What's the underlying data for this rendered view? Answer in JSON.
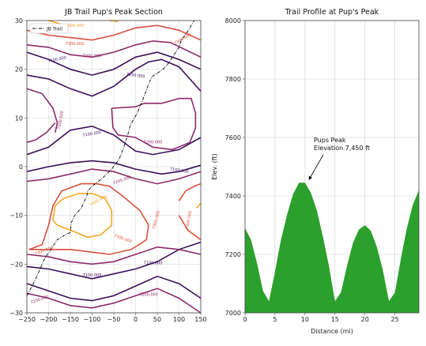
{
  "chart_data": [
    {
      "type": "contour",
      "title": "JB Trail Pup's Peak Section",
      "xlabel": "",
      "ylabel": "",
      "xlim": [
        -250,
        150
      ],
      "ylim": [
        -30,
        30
      ],
      "xticks": [
        -250,
        -200,
        -150,
        -100,
        -50,
        0,
        50,
        100,
        150
      ],
      "yticks": [
        -30,
        -20,
        -10,
        0,
        10,
        20,
        30
      ],
      "grid": true,
      "legend": {
        "position": "top-left",
        "entries": [
          "JB Trail"
        ]
      },
      "levels": [
        {
          "value": 7100,
          "color": "#3b0f5c",
          "label": "7100.000"
        },
        {
          "value": 7200,
          "color": "#8c2a6a",
          "label": "7200.000"
        },
        {
          "value": 7300,
          "color": "#d8503b",
          "label": "7300.000"
        },
        {
          "value": 7400,
          "color": "#f5a623",
          "label": "7400.000"
        }
      ],
      "trail": {
        "name": "JB Trail",
        "color": "#000000",
        "points": [
          [
            -250,
            -26.5
          ],
          [
            -235,
            -24
          ],
          [
            -222,
            -21.5
          ],
          [
            -210,
            -19
          ],
          [
            -195,
            -17
          ],
          [
            -180,
            -15
          ],
          [
            -162,
            -14
          ],
          [
            -150,
            -13.5
          ],
          [
            -148,
            -11.5
          ],
          [
            -140,
            -10
          ],
          [
            -125,
            -8.5
          ],
          [
            -112,
            -6
          ],
          [
            -110,
            -5
          ],
          [
            -100,
            -4
          ],
          [
            -85,
            -3
          ],
          [
            -72,
            -2
          ],
          [
            -55,
            -0.5
          ],
          [
            -38,
            1.5
          ],
          [
            -27,
            4
          ],
          [
            -18,
            6.5
          ],
          [
            -12,
            8.5
          ],
          [
            -6,
            9.5
          ],
          [
            4,
            11
          ],
          [
            13,
            13
          ],
          [
            22,
            15
          ],
          [
            30,
            17
          ],
          [
            38,
            18.5
          ],
          [
            55,
            19.5
          ],
          [
            70,
            20.5
          ],
          [
            85,
            22.5
          ],
          [
            100,
            24.5
          ],
          [
            105,
            26
          ],
          [
            118,
            27.5
          ],
          [
            128,
            29
          ],
          [
            135,
            30
          ]
        ]
      }
    },
    {
      "type": "area",
      "title": "Trail Profile at Pup's Peak",
      "xlabel": "Distance (mi)",
      "ylabel": "Elev. (ft)",
      "xlim": [
        0,
        29
      ],
      "ylim": [
        7000,
        8000
      ],
      "xticks": [
        0,
        5,
        10,
        15,
        20,
        25
      ],
      "yticks": [
        7000,
        7200,
        7400,
        7600,
        7800,
        8000
      ],
      "grid": true,
      "color": "#2ca02c",
      "x": [
        0,
        1,
        2,
        3,
        4,
        5,
        6,
        7,
        8,
        9,
        10,
        11,
        12,
        13,
        14,
        15,
        16,
        17,
        18,
        19,
        20,
        21,
        22,
        23,
        24,
        25,
        26,
        27,
        28,
        29
      ],
      "values": [
        7290,
        7250,
        7170,
        7075,
        7040,
        7140,
        7250,
        7335,
        7405,
        7445,
        7445,
        7410,
        7350,
        7260,
        7160,
        7040,
        7070,
        7160,
        7240,
        7285,
        7300,
        7280,
        7225,
        7145,
        7040,
        7070,
        7185,
        7290,
        7370,
        7420
      ],
      "annotation": {
        "text": "Pups Peak\nElevation 7,450 ft",
        "x": 10,
        "y": 7450
      }
    }
  ]
}
